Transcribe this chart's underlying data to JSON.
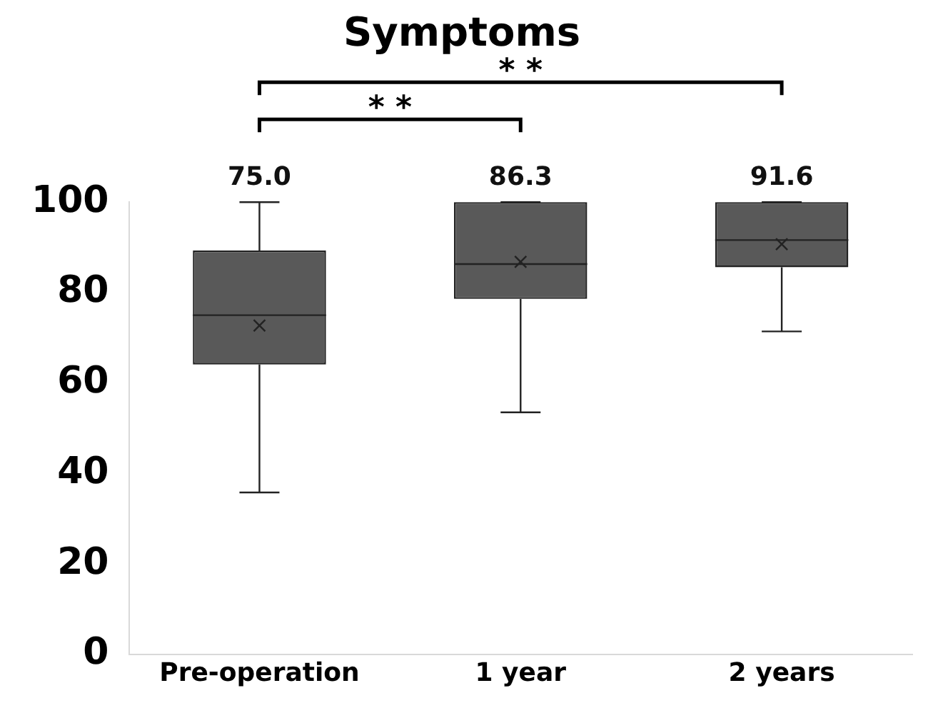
{
  "chart_data": {
    "type": "box",
    "title": "Symptoms",
    "categories": [
      "Pre-operation",
      "1 year",
      "2 years"
    ],
    "color": "#595959",
    "boxes": [
      {
        "low": 35.8,
        "q1": 64.1,
        "median": 75.0,
        "q3": 89.3,
        "high": 100,
        "mean": 72.7
      },
      {
        "low": 53.5,
        "q1": 78.6,
        "median": 86.3,
        "q3": 100,
        "high": 100,
        "mean": 86.8
      },
      {
        "low": 71.4,
        "q1": 85.6,
        "median": 91.6,
        "q3": 100,
        "high": 100,
        "mean": 90.7
      }
    ],
    "value_labels": [
      "75.0",
      "86.3",
      "91.6"
    ],
    "annotations": [
      "* *",
      "* *"
    ],
    "ylim": [
      0,
      100
    ],
    "yticks": [
      0,
      20,
      40,
      60,
      80,
      100
    ],
    "grid": false,
    "legend": false
  }
}
